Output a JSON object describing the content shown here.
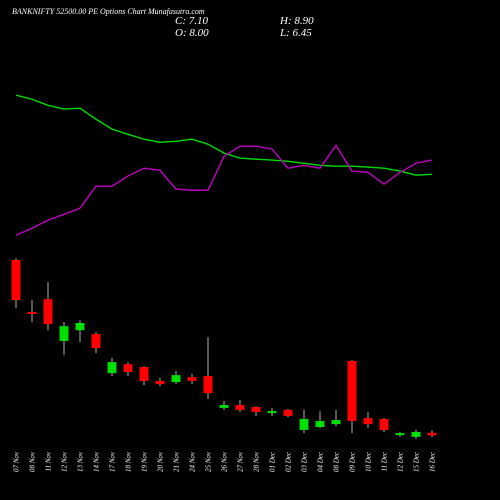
{
  "chart_data": {
    "type": "candlestick",
    "title": "BANKNIFTY 52500.00 PE Options Chart Munafasutra.com",
    "header_stats": [
      "C: 7.10",
      "H: 8.90",
      "O: 8.00",
      "L: 6.45"
    ],
    "categories": [
      "07 Nov",
      "08 Nov",
      "11 Nov",
      "12 Nov",
      "13 Nov",
      "14 Nov",
      "17 Nov",
      "18 Nov",
      "19 Nov",
      "20 Nov",
      "21 Nov",
      "24 Nov",
      "25 Nov",
      "26 Nov",
      "27 Nov",
      "28 Nov",
      "01 Dec",
      "02 Dec",
      "03 Dec",
      "04 Dec",
      "08 Dec",
      "09 Dec",
      "10 Dec",
      "11 Dec",
      "12 Dec",
      "15 Dec",
      "16 Dec"
    ],
    "open": [
      67.6,
      49.7,
      54.1,
      39.7,
      43.4,
      42.1,
      28.6,
      31.7,
      30.7,
      25.9,
      25.5,
      27.2,
      27.6,
      16.6,
      17.6,
      16.9,
      14.8,
      15.9,
      9.0,
      10.0,
      11.0,
      32.8,
      13.1,
      12.8,
      7.2,
      6.6,
      8.0
    ],
    "high": [
      68.3,
      53.8,
      60.0,
      46.2,
      46.9,
      42.8,
      33.8,
      32.4,
      31.0,
      26.9,
      29.3,
      28.3,
      41.0,
      19.0,
      19.3,
      17.2,
      16.6,
      16.2,
      15.9,
      15.5,
      15.9,
      33.1,
      15.2,
      13.1,
      8.3,
      9.0,
      8.9
    ],
    "low": [
      51.0,
      46.2,
      43.4,
      34.8,
      39.3,
      35.5,
      27.6,
      27.6,
      24.5,
      24.1,
      24.8,
      24.8,
      19.7,
      15.9,
      15.2,
      13.8,
      13.8,
      13.4,
      7.9,
      9.7,
      10.3,
      7.9,
      9.7,
      8.3,
      6.6,
      5.9,
      6.45
    ],
    "close": [
      53.8,
      49.0,
      45.5,
      44.8,
      45.9,
      37.2,
      32.4,
      29.0,
      25.9,
      24.8,
      27.9,
      25.9,
      21.7,
      17.6,
      15.9,
      15.2,
      15.5,
      13.8,
      12.8,
      12.1,
      12.4,
      12.1,
      11.0,
      9.0,
      7.9,
      8.3,
      7.1
    ],
    "up_color": "#00e000",
    "down_color": "#ff0000",
    "lines": [
      {
        "color": "#00dd00",
        "values": [
          124.5,
          123.1,
          121.0,
          119.7,
          120.0,
          116.2,
          112.8,
          111.0,
          109.3,
          108.3,
          108.6,
          109.3,
          107.6,
          104.5,
          102.8,
          102.4,
          102.1,
          101.7,
          101.0,
          100.3,
          100.0,
          100.0,
          99.7,
          99.3,
          98.3,
          96.9,
          97.2
        ]
      },
      {
        "color": "#c000c0",
        "values": [
          76.2,
          78.6,
          81.4,
          83.4,
          85.5,
          93.1,
          93.1,
          96.6,
          99.3,
          98.6,
          92.1,
          91.7,
          91.7,
          103.4,
          106.9,
          106.9,
          105.9,
          99.3,
          100.3,
          99.3,
          107.2,
          98.3,
          97.9,
          93.8,
          97.9,
          101.0,
          102.1
        ]
      }
    ],
    "ylim": [
      0,
      157
    ]
  }
}
